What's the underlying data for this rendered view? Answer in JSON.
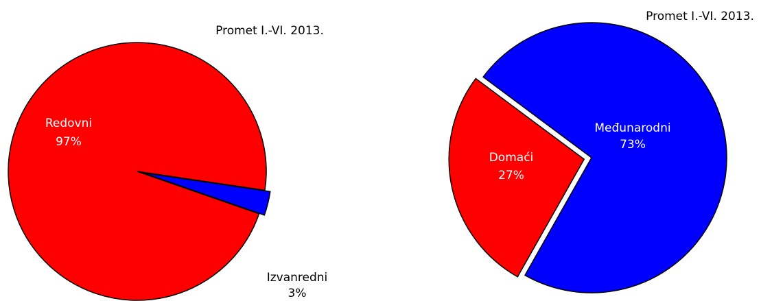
{
  "chart_data": [
    {
      "type": "pie",
      "title": "Promet I.-VI. 2013.",
      "categories": [
        "Redovni",
        "Izvanredni"
      ],
      "values": [
        97,
        3
      ],
      "value_labels": [
        "97%",
        "3%"
      ],
      "colors": [
        "#ff0000",
        "#0000ff"
      ]
    },
    {
      "type": "pie",
      "title": "Promet I.-VI. 2013.",
      "categories": [
        "Domaći",
        "Međunarodni"
      ],
      "values": [
        27,
        73
      ],
      "value_labels": [
        "27%",
        "73%"
      ],
      "colors": [
        "#ff0000",
        "#0000ff"
      ]
    }
  ]
}
